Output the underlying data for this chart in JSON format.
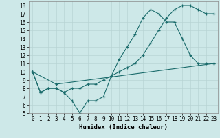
{
  "xlabel": "Humidex (Indice chaleur)",
  "bg_color": "#cde8e8",
  "grid_color": "#b8d4d4",
  "line_color": "#1a6b6b",
  "xlim": [
    -0.5,
    23.5
  ],
  "ylim": [
    5,
    18.5
  ],
  "xticks": [
    0,
    1,
    2,
    3,
    4,
    5,
    6,
    7,
    8,
    9,
    10,
    11,
    12,
    13,
    14,
    15,
    16,
    17,
    18,
    19,
    20,
    21,
    22,
    23
  ],
  "yticks": [
    5,
    6,
    7,
    8,
    9,
    10,
    11,
    12,
    13,
    14,
    15,
    16,
    17,
    18
  ],
  "line1_x": [
    0,
    1,
    2,
    3,
    4,
    5,
    6,
    7,
    8,
    9,
    10,
    11,
    12,
    13,
    14,
    15,
    16,
    17,
    18,
    19,
    20,
    21,
    22,
    23
  ],
  "line1_y": [
    10,
    7.5,
    8,
    8,
    7.5,
    6.5,
    5,
    6.5,
    6.5,
    7,
    9.5,
    11.5,
    13,
    14.5,
    16.5,
    17.5,
    17,
    16,
    16,
    14,
    12,
    11,
    11,
    11
  ],
  "line2_x": [
    0,
    1,
    2,
    3,
    4,
    5,
    6,
    7,
    8,
    9,
    10,
    11,
    12,
    13,
    14,
    15,
    16,
    17,
    18,
    19,
    20,
    21,
    22,
    23
  ],
  "line2_y": [
    10,
    7.5,
    8,
    8,
    7.5,
    8,
    8,
    8.5,
    8.5,
    9,
    9.5,
    10,
    10.5,
    11,
    12,
    13.5,
    15,
    16.5,
    17.5,
    18,
    18,
    17.5,
    17,
    17
  ],
  "line3_x": [
    0,
    3,
    23
  ],
  "line3_y": [
    10,
    8.5,
    11
  ],
  "tick_fontsize": 5.5,
  "xlabel_fontsize": 6.5
}
